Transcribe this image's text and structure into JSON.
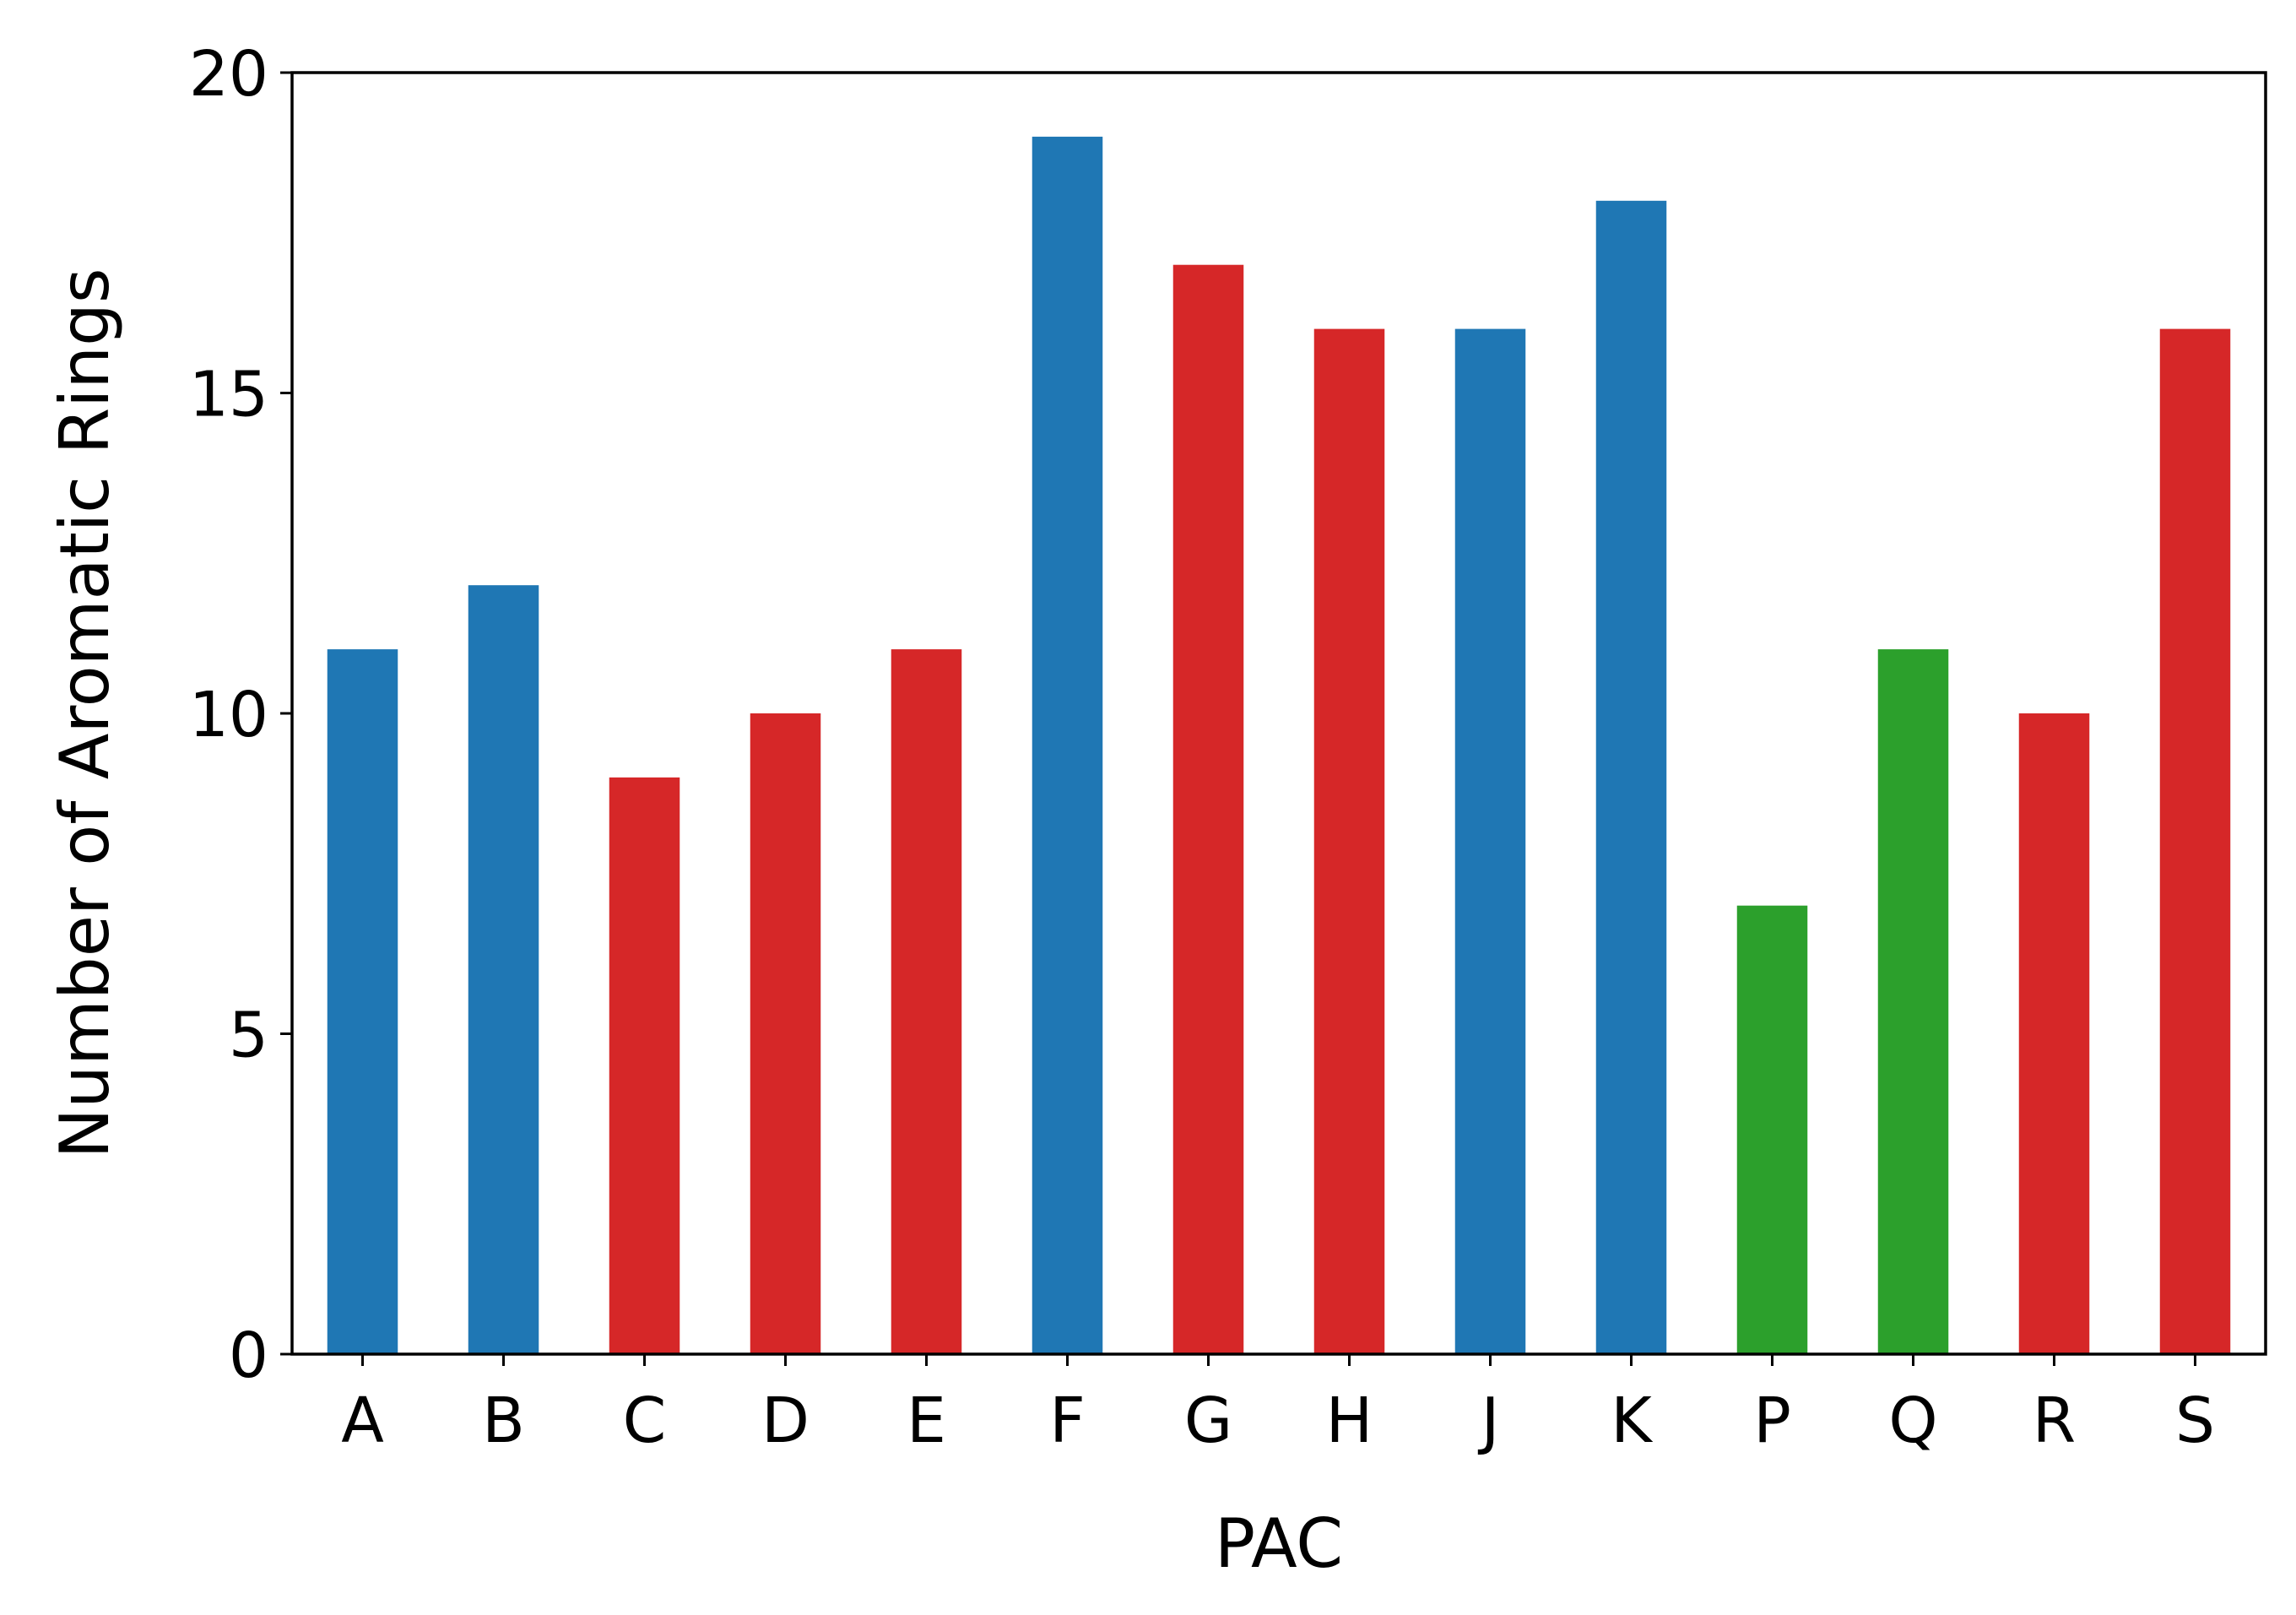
{
  "chart_data": {
    "type": "bar",
    "xlabel": "PAC",
    "ylabel": "Number of Aromatic Rings",
    "ylim": [
      0,
      20
    ],
    "yticks": [
      0,
      5,
      10,
      15,
      20
    ],
    "grid": false,
    "categories": [
      "A",
      "B",
      "C",
      "D",
      "E",
      "F",
      "G",
      "H",
      "J",
      "K",
      "P",
      "Q",
      "R",
      "S"
    ],
    "values": [
      11,
      12,
      9,
      10,
      11,
      19,
      17,
      16,
      16,
      18,
      7,
      11,
      10,
      16
    ],
    "bar_colors": [
      "#1f77b4",
      "#1f77b4",
      "#d62728",
      "#d62728",
      "#d62728",
      "#1f77b4",
      "#d62728",
      "#d62728",
      "#1f77b4",
      "#1f77b4",
      "#2ca02c",
      "#2ca02c",
      "#d62728",
      "#d62728"
    ]
  }
}
